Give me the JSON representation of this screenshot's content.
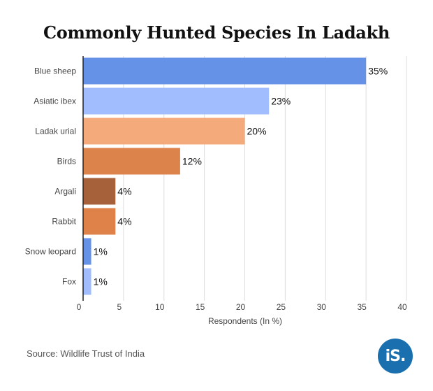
{
  "chart_data": {
    "type": "bar",
    "orientation": "horizontal",
    "title": "Commonly Hunted Species In Ladakh",
    "xlabel": "Respondents (In %)",
    "ylabel": "",
    "xlim": [
      0,
      40
    ],
    "xticks": [
      0,
      5,
      10,
      15,
      20,
      25,
      30,
      35,
      40
    ],
    "grid": true,
    "categories": [
      "Blue sheep",
      "Asiatic ibex",
      "Ladak urial",
      "Birds",
      "Argali",
      "Rabbit",
      "Snow leopard",
      "Fox"
    ],
    "values": [
      35,
      23,
      20,
      12,
      4,
      4,
      1,
      1
    ],
    "data_labels": [
      "35%",
      "23%",
      "20%",
      "12%",
      "4%",
      "4%",
      "1%",
      "1%"
    ],
    "colors": [
      "#6592e6",
      "#a1bdfd",
      "#f4aa7b",
      "#dc824b",
      "#a6613b",
      "#de824a",
      "#6592e6",
      "#a1bdfd"
    ]
  },
  "source": "Source: Wildlife Trust of India",
  "logo_text": "iS."
}
